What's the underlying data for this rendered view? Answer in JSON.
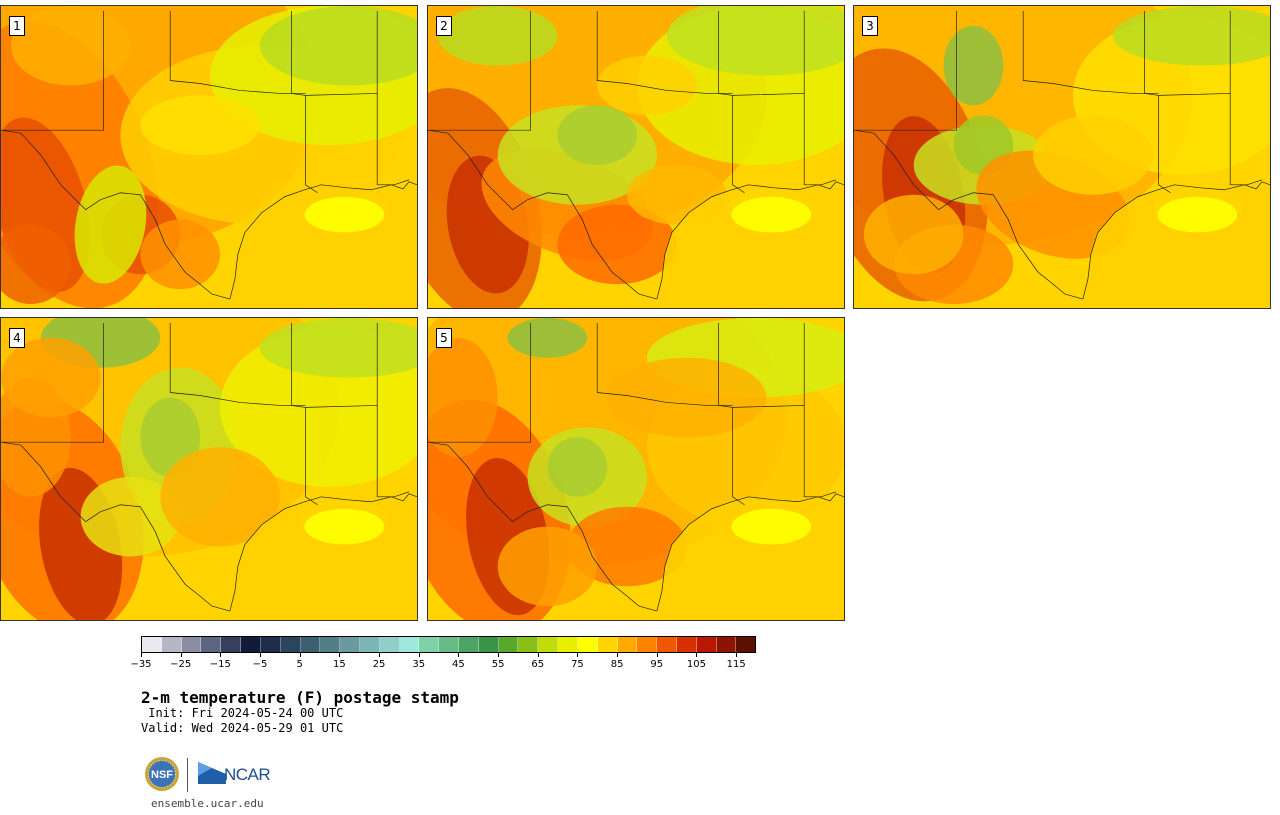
{
  "panels": [
    {
      "label": "1",
      "variant": 0
    },
    {
      "label": "2",
      "variant": 1
    },
    {
      "label": "3",
      "variant": 2
    },
    {
      "label": "4",
      "variant": 3
    },
    {
      "label": "5",
      "variant": 4
    }
  ],
  "colorbar": {
    "colors": [
      "#e8e8ee",
      "#b6b6c6",
      "#8a8ca2",
      "#5c6582",
      "#34405e",
      "#101c38",
      "#1c2e4c",
      "#2a465e",
      "#3c6070",
      "#547e86",
      "#6a9aa0",
      "#7cb6b4",
      "#8ed0c8",
      "#9ee8dc",
      "#80d0a8",
      "#66bc86",
      "#4ca466",
      "#3a9448",
      "#5aa828",
      "#88c018",
      "#c0dc0a",
      "#e8f000",
      "#ffff00",
      "#ffd400",
      "#ffaa00",
      "#ff8200",
      "#f05800",
      "#d83000",
      "#b81800",
      "#8c1400",
      "#5c1000"
    ],
    "tick_labels": [
      "−35",
      "−25",
      "−15",
      "−5",
      "5",
      "15",
      "25",
      "35",
      "45",
      "55",
      "65",
      "75",
      "85",
      "95",
      "105",
      "115"
    ],
    "min": -35,
    "max": 120,
    "step": 5
  },
  "title": "2-m temperature (F) postage stamp",
  "init_line": " Init: Fri 2024-05-24 00 UTC",
  "valid_line": "Valid: Wed 2024-05-29 01 UTC",
  "logos": {
    "nsf": "NSF",
    "ncar": "NCAR"
  },
  "site": "ensemble.ucar.edu"
}
